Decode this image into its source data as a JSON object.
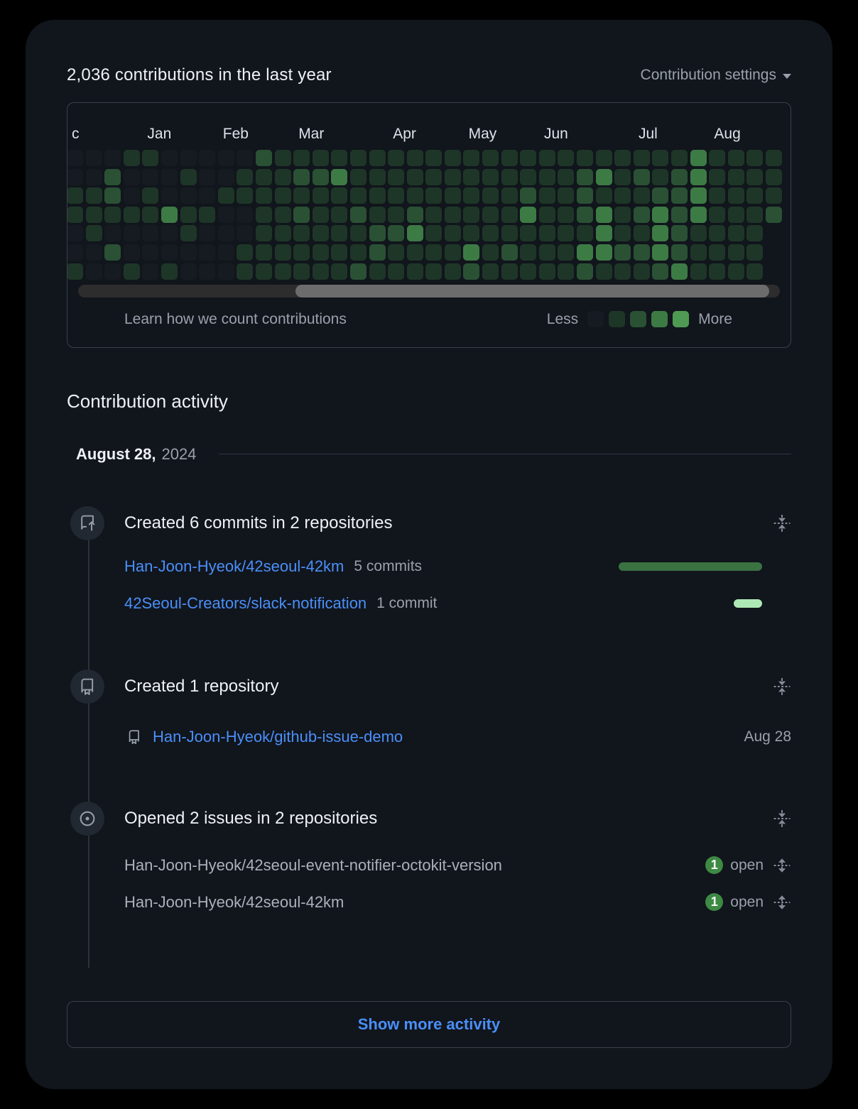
{
  "header": {
    "title": "2,036 contributions in the last year",
    "settings_label": "Contribution settings"
  },
  "contribution_graph": {
    "type": "heatmap",
    "rows": 7,
    "level_colors": [
      "#161b22",
      "#1e3627",
      "#2a5134",
      "#3d7b45",
      "#4f9a52"
    ],
    "months": [
      {
        "label": "c",
        "col": 0
      },
      {
        "label": "Jan",
        "col": 4
      },
      {
        "label": "Feb",
        "col": 8
      },
      {
        "label": "Mar",
        "col": 12
      },
      {
        "label": "Apr",
        "col": 17
      },
      {
        "label": "May",
        "col": 21
      },
      {
        "label": "Jun",
        "col": 25
      },
      {
        "label": "Jul",
        "col": 30
      },
      {
        "label": "Aug",
        "col": 34
      }
    ],
    "weeks": [
      "0011001",
      "0011100",
      "0221020",
      "1001001",
      "1011000",
      "0003001",
      "0101100",
      "0001000",
      "0010000",
      "0110011",
      "2111111",
      "1111111",
      "1212111",
      "1211111",
      "1311111",
      "1112112",
      "1111221",
      "1111211",
      "1112311",
      "1111111",
      "1111111",
      "1111132",
      "1111111",
      "1111121",
      "1123111",
      "1111111",
      "1111111",
      "1222132",
      "1313331",
      "1111121",
      "1212121",
      "1123332",
      "1222223",
      "3333111",
      "1111111",
      "1111111",
      "1111111",
      "1112"
    ],
    "learn_link": "Learn how we count contributions",
    "legend": {
      "less": "Less",
      "more": "More"
    }
  },
  "activity": {
    "heading": "Contribution activity",
    "date_label": "August 28,",
    "date_year": "2024",
    "items": [
      {
        "title": "Created 6 commits in 2 repositories",
        "repos": [
          {
            "name": "Han-Joon-Hyeok/42seoul-42km",
            "meta": "5 commits",
            "commits": 5,
            "bar_color": "#3a7242"
          },
          {
            "name": "42Seoul-Creators/slack-notification",
            "meta": "1 commit",
            "commits": 1,
            "bar_color": "#aee8b6"
          }
        ]
      },
      {
        "title": "Created 1 repository",
        "repo": {
          "name": "Han-Joon-Hyeok/github-issue-demo",
          "date": "Aug 28"
        }
      },
      {
        "title": "Opened 2 issues in 2 repositories",
        "issues": [
          {
            "name": "Han-Joon-Hyeok/42seoul-event-notifier-octokit-version",
            "count": "1",
            "state": "open"
          },
          {
            "name": "Han-Joon-Hyeok/42seoul-42km",
            "count": "1",
            "state": "open"
          }
        ]
      }
    ],
    "show_more_label": "Show more activity"
  }
}
